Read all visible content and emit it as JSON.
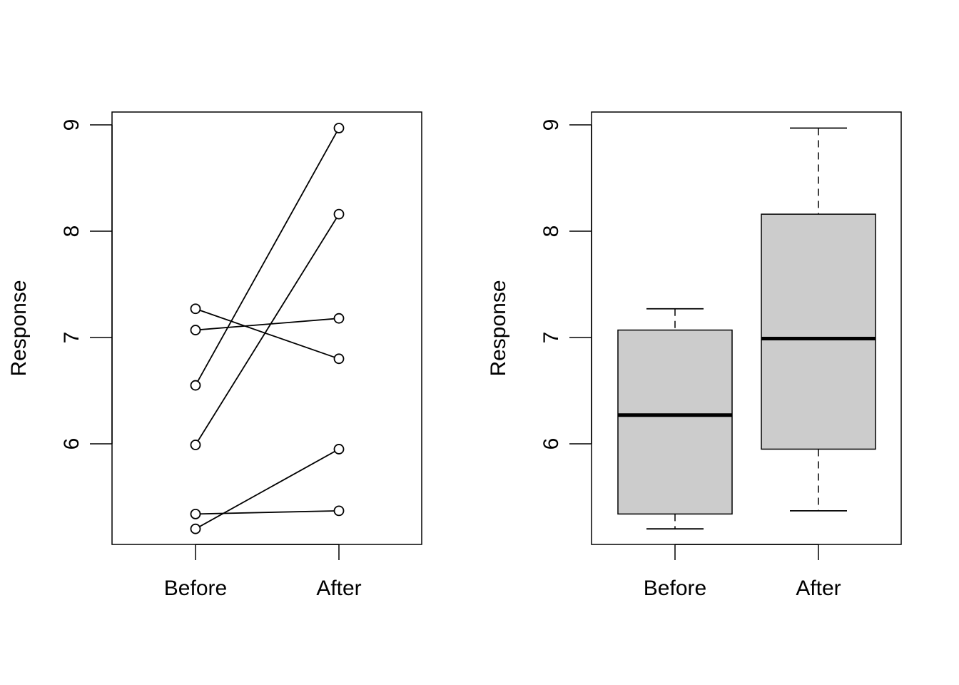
{
  "chart_data": [
    {
      "type": "line",
      "subtype": "paired",
      "categories": [
        "Before",
        "After"
      ],
      "pairs": [
        {
          "before": 5.34,
          "after": 5.37
        },
        {
          "before": 5.2,
          "after": 5.95
        },
        {
          "before": 5.99,
          "after": 8.16
        },
        {
          "before": 6.55,
          "after": 8.97
        },
        {
          "before": 7.07,
          "after": 7.18
        },
        {
          "before": 7.27,
          "after": 6.8
        }
      ],
      "ylabel": "Response",
      "ylim": [
        5.06,
        9.12
      ],
      "yticks": [
        6,
        7,
        8,
        9
      ],
      "marker": "open-circle",
      "line_color": "#000000"
    },
    {
      "type": "boxplot",
      "categories": [
        "Before",
        "After"
      ],
      "boxes": [
        {
          "name": "Before",
          "min": 5.2,
          "q1": 5.34,
          "median": 6.27,
          "q3": 7.07,
          "max": 7.27
        },
        {
          "name": "After",
          "min": 5.37,
          "q1": 5.95,
          "median": 6.99,
          "q3": 8.16,
          "max": 8.97
        }
      ],
      "ylabel": "Response",
      "ylim": [
        5.06,
        9.12
      ],
      "yticks": [
        6,
        7,
        8,
        9
      ],
      "box_fill": "#cccccc",
      "line_color": "#000000"
    }
  ]
}
